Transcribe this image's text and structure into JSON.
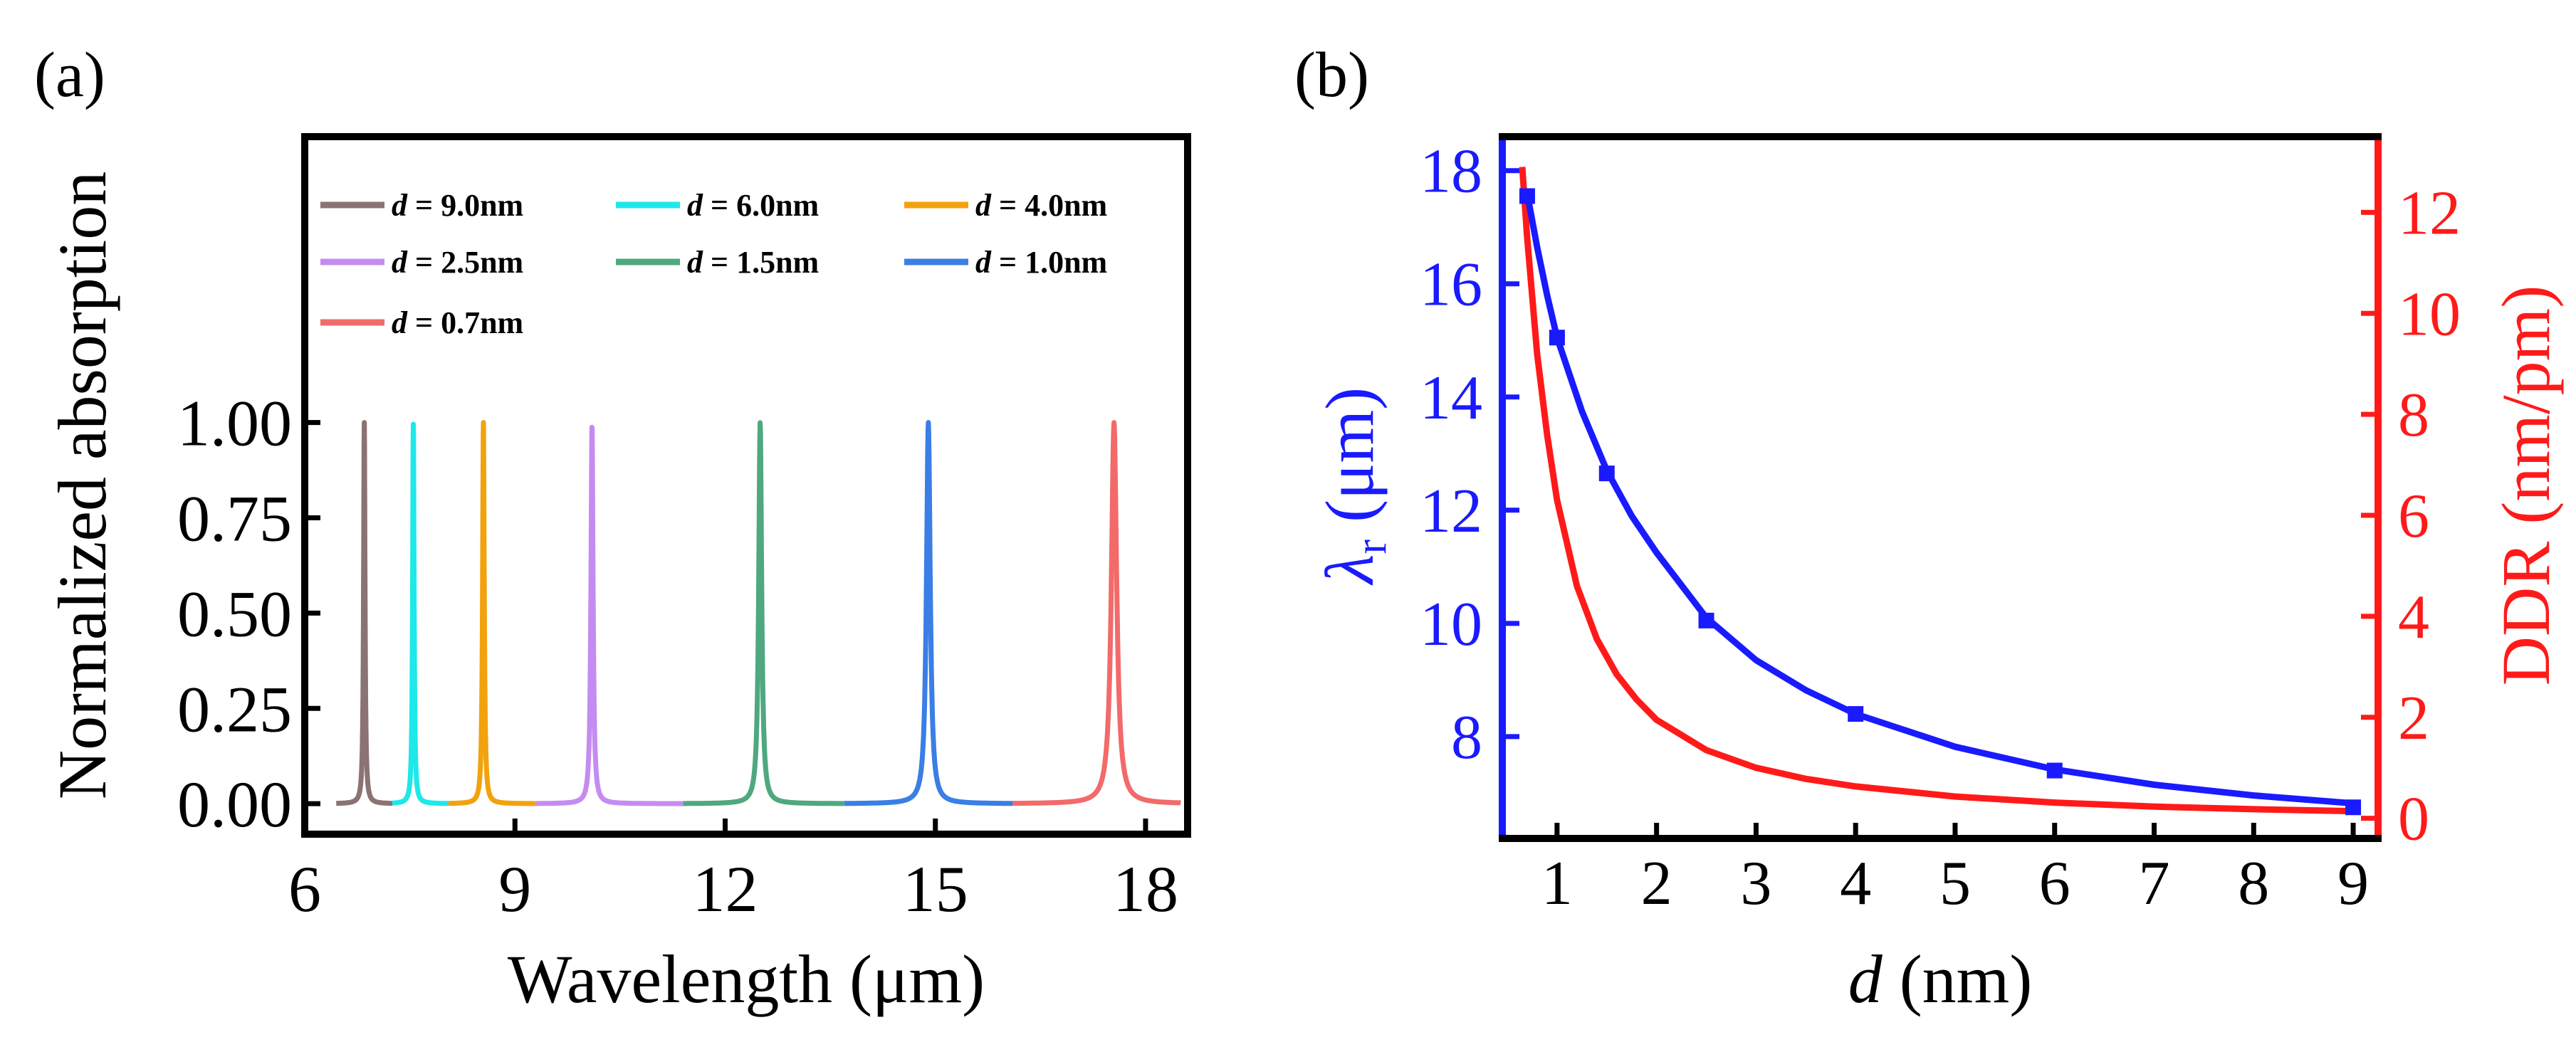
{
  "colors": {
    "axis": "#000000",
    "lambda_color": "#1a1aff",
    "ddr_color": "#ff1a1a"
  },
  "chart_data": [
    {
      "panel_label": "(a)",
      "type": "line",
      "xlabel": "Wavelength (μm)",
      "ylabel": "Normalized absorption",
      "xlim": [
        6,
        18.6
      ],
      "ylim": [
        -0.08,
        1.75
      ],
      "xticks": [
        6,
        9,
        12,
        15,
        18
      ],
      "xtick_labels": [
        "6",
        "9",
        "12",
        "15",
        "18"
      ],
      "yticks": [
        0.0,
        0.25,
        0.5,
        0.75,
        1.0
      ],
      "ytick_labels": [
        "0.00",
        "0.25",
        "0.50",
        "0.75",
        "1.00"
      ],
      "legend_position": "top",
      "series": [
        {
          "name": "d = 9.0nm",
          "d_label": "d",
          "eq_label": " = 9.0nm",
          "color": "#8b7373",
          "peak_x": 6.85,
          "peak_y": 1.0,
          "halfwidth": 0.012,
          "x_range": [
            6.45,
            7.25
          ]
        },
        {
          "name": "d = 6.0nm",
          "d_label": "d",
          "eq_label": " = 6.0nm",
          "color": "#1de8ea",
          "peak_x": 7.55,
          "peak_y": 1.0,
          "halfwidth": 0.012,
          "x_range": [
            7.25,
            8.05
          ]
        },
        {
          "name": "d = 4.0nm",
          "d_label": "d",
          "eq_label": " = 4.0nm",
          "color": "#f2a20d",
          "peak_x": 8.55,
          "peak_y": 1.0,
          "halfwidth": 0.014,
          "x_range": [
            8.05,
            9.3
          ]
        },
        {
          "name": "d = 2.5nm",
          "d_label": "d",
          "eq_label": " = 2.5nm",
          "color": "#c48cf0",
          "peak_x": 10.1,
          "peak_y": 1.0,
          "halfwidth": 0.018,
          "x_range": [
            9.3,
            11.4
          ]
        },
        {
          "name": "d = 1.5nm",
          "d_label": "d",
          "eq_label": " = 1.5nm",
          "color": "#4fa87e",
          "peak_x": 12.5,
          "peak_y": 1.0,
          "halfwidth": 0.025,
          "x_range": [
            11.4,
            13.7
          ]
        },
        {
          "name": "d = 1.0nm",
          "d_label": "d",
          "eq_label": " = 1.0nm",
          "color": "#3a7ee6",
          "peak_x": 14.9,
          "peak_y": 1.0,
          "halfwidth": 0.032,
          "x_range": [
            13.7,
            16.1
          ]
        },
        {
          "name": "d = 0.7nm",
          "d_label": "d",
          "eq_label": " = 0.7nm",
          "color": "#f26a6a",
          "peak_x": 17.55,
          "peak_y": 1.0,
          "halfwidth": 0.045,
          "x_range": [
            16.1,
            18.5
          ]
        }
      ]
    },
    {
      "panel_label": "(b)",
      "type": "line",
      "xlabel_italic": "d",
      "xlabel_rest": " (nm)",
      "ylabel_left_main": "λ",
      "ylabel_left_sub": "r",
      "ylabel_left_rest": " (μm)",
      "ylabel_right": "DDR (nm/pm)",
      "xlim": [
        0.45,
        9.25
      ],
      "ylim_left": [
        6.2,
        18.6
      ],
      "ylim_right": [
        -0.4,
        13.5
      ],
      "xticks": [
        1,
        2,
        3,
        4,
        5,
        6,
        7,
        8,
        9
      ],
      "xtick_labels": [
        "1",
        "2",
        "3",
        "4",
        "5",
        "6",
        "7",
        "8",
        "9"
      ],
      "yticks_left": [
        8,
        10,
        12,
        14,
        16,
        18
      ],
      "ytick_labels_left": [
        "8",
        "10",
        "12",
        "14",
        "16",
        "18"
      ],
      "yticks_right": [
        0,
        2,
        4,
        6,
        8,
        10,
        12
      ],
      "ytick_labels_right": [
        "0",
        "2",
        "4",
        "6",
        "8",
        "10",
        "12"
      ],
      "series": [
        {
          "name": "lambda_r",
          "axis": "left",
          "color": "#1a1aff",
          "points_x": [
            0.7,
            1.0,
            1.5,
            2.5,
            4.0,
            6.0,
            9.0
          ],
          "points_y": [
            17.55,
            15.05,
            12.65,
            10.05,
            8.4,
            7.4,
            6.75
          ],
          "fit_x": [
            0.7,
            0.8,
            0.9,
            1.0,
            1.25,
            1.5,
            1.75,
            2.0,
            2.5,
            3.0,
            3.5,
            4.0,
            5.0,
            6.0,
            7.0,
            8.0,
            9.0
          ],
          "fit_y": [
            17.6,
            16.65,
            15.8,
            15.05,
            13.75,
            12.7,
            11.9,
            11.25,
            10.1,
            9.35,
            8.82,
            8.4,
            7.82,
            7.42,
            7.15,
            6.96,
            6.82
          ]
        },
        {
          "name": "DDR",
          "axis": "right",
          "color": "#ff1a1a",
          "fit_x": [
            0.65,
            0.7,
            0.8,
            0.9,
            1.0,
            1.2,
            1.4,
            1.6,
            1.8,
            2.0,
            2.5,
            3.0,
            3.5,
            4.0,
            5.0,
            6.0,
            7.0,
            8.0,
            9.0
          ],
          "fit_y": [
            12.9,
            11.5,
            9.2,
            7.6,
            6.3,
            4.6,
            3.55,
            2.85,
            2.35,
            1.95,
            1.35,
            1.0,
            0.78,
            0.63,
            0.43,
            0.31,
            0.23,
            0.18,
            0.14
          ]
        }
      ]
    }
  ]
}
